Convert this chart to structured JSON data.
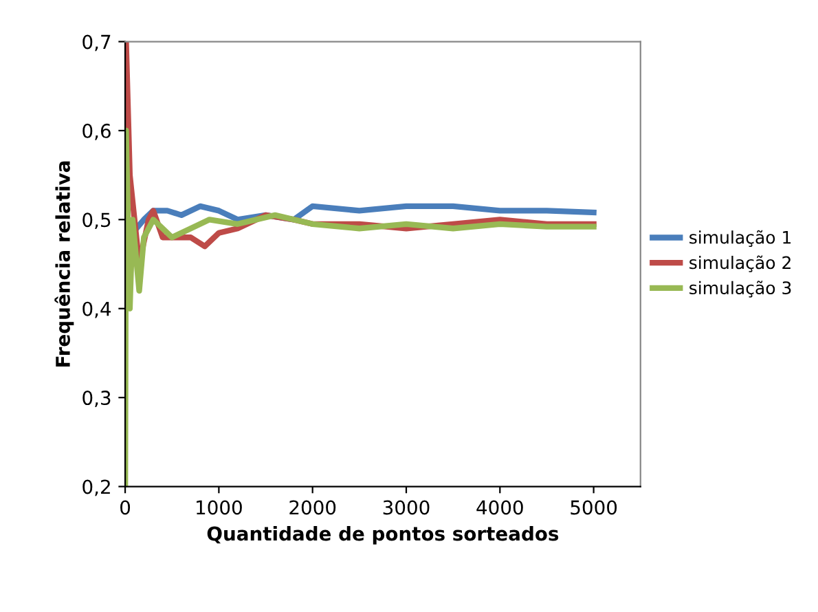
{
  "chart_data": {
    "type": "line",
    "xlabel": "Quantidade de pontos sorteados",
    "ylabel": "Frequência relativa",
    "xlim": [
      0,
      5500
    ],
    "xticks": [
      0,
      1000,
      2000,
      3000,
      4000,
      5000
    ],
    "ylim": [
      0.2,
      0.7
    ],
    "yticks": [
      {
        "value": 0.2,
        "label": "0,2"
      },
      {
        "value": 0.3,
        "label": "0,3"
      },
      {
        "value": 0.4,
        "label": "0,4"
      },
      {
        "value": 0.5,
        "label": "0,5"
      },
      {
        "value": 0.6,
        "label": "0,6"
      },
      {
        "value": 0.7,
        "label": "0,7"
      }
    ],
    "grid": false,
    "legend": "right",
    "line_style": "solid",
    "marker": "none",
    "series": [
      {
        "name": "simulação 1",
        "color": "#4a7ebb",
        "x": [
          120,
          200,
          300,
          450,
          600,
          800,
          1000,
          1200,
          1500,
          1800,
          2000,
          2500,
          3000,
          3500,
          4000,
          4500,
          5000
        ],
        "values": [
          0.49,
          0.5,
          0.51,
          0.51,
          0.505,
          0.515,
          0.51,
          0.5,
          0.505,
          0.5,
          0.515,
          0.51,
          0.515,
          0.515,
          0.51,
          0.51,
          0.508
        ]
      },
      {
        "name": "simulação 2",
        "color": "#be4b48",
        "x": [
          2,
          10,
          50,
          100,
          150,
          250,
          300,
          400,
          700,
          850,
          1000,
          1200,
          1500,
          1800,
          2000,
          2500,
          3000,
          3500,
          4000,
          4500,
          5000
        ],
        "values": [
          0.6,
          0.7,
          0.55,
          0.5,
          0.45,
          0.5,
          0.51,
          0.48,
          0.48,
          0.47,
          0.485,
          0.49,
          0.505,
          0.5,
          0.495,
          0.495,
          0.49,
          0.495,
          0.5,
          0.495,
          0.495
        ]
      },
      {
        "name": "simulação 3",
        "color": "#98b954",
        "x": [
          1,
          10,
          50,
          80,
          150,
          200,
          300,
          500,
          700,
          900,
          1200,
          1600,
          2000,
          2500,
          3000,
          3500,
          4000,
          4500,
          5000
        ],
        "values": [
          0.2,
          0.6,
          0.4,
          0.5,
          0.42,
          0.48,
          0.5,
          0.48,
          0.49,
          0.5,
          0.495,
          0.505,
          0.495,
          0.49,
          0.495,
          0.49,
          0.495,
          0.492,
          0.492
        ]
      }
    ]
  }
}
